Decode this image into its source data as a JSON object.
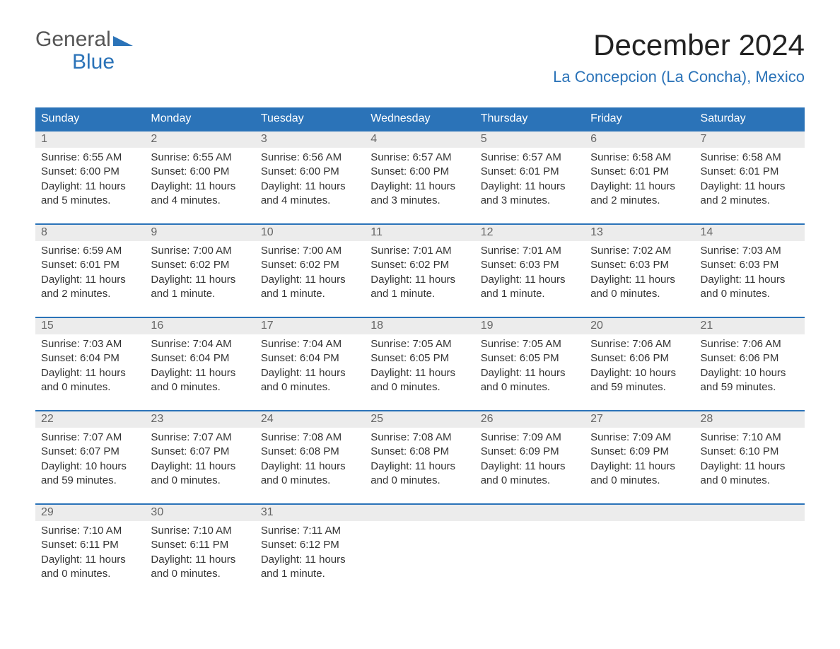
{
  "logo": {
    "word1": "General",
    "word2": "Blue"
  },
  "title": "December 2024",
  "location": "La Concepcion (La Concha), Mexico",
  "colors": {
    "brand_blue": "#2b73b8",
    "header_text": "#ffffff",
    "daynum_bg": "#ececec",
    "daynum_text": "#666666",
    "body_text": "#333333",
    "background": "#ffffff"
  },
  "day_labels": [
    "Sunday",
    "Monday",
    "Tuesday",
    "Wednesday",
    "Thursday",
    "Friday",
    "Saturday"
  ],
  "weeks": [
    [
      {
        "n": "1",
        "sr": "Sunrise: 6:55 AM",
        "ss": "Sunset: 6:00 PM",
        "d1": "Daylight: 11 hours",
        "d2": "and 5 minutes."
      },
      {
        "n": "2",
        "sr": "Sunrise: 6:55 AM",
        "ss": "Sunset: 6:00 PM",
        "d1": "Daylight: 11 hours",
        "d2": "and 4 minutes."
      },
      {
        "n": "3",
        "sr": "Sunrise: 6:56 AM",
        "ss": "Sunset: 6:00 PM",
        "d1": "Daylight: 11 hours",
        "d2": "and 4 minutes."
      },
      {
        "n": "4",
        "sr": "Sunrise: 6:57 AM",
        "ss": "Sunset: 6:00 PM",
        "d1": "Daylight: 11 hours",
        "d2": "and 3 minutes."
      },
      {
        "n": "5",
        "sr": "Sunrise: 6:57 AM",
        "ss": "Sunset: 6:01 PM",
        "d1": "Daylight: 11 hours",
        "d2": "and 3 minutes."
      },
      {
        "n": "6",
        "sr": "Sunrise: 6:58 AM",
        "ss": "Sunset: 6:01 PM",
        "d1": "Daylight: 11 hours",
        "d2": "and 2 minutes."
      },
      {
        "n": "7",
        "sr": "Sunrise: 6:58 AM",
        "ss": "Sunset: 6:01 PM",
        "d1": "Daylight: 11 hours",
        "d2": "and 2 minutes."
      }
    ],
    [
      {
        "n": "8",
        "sr": "Sunrise: 6:59 AM",
        "ss": "Sunset: 6:01 PM",
        "d1": "Daylight: 11 hours",
        "d2": "and 2 minutes."
      },
      {
        "n": "9",
        "sr": "Sunrise: 7:00 AM",
        "ss": "Sunset: 6:02 PM",
        "d1": "Daylight: 11 hours",
        "d2": "and 1 minute."
      },
      {
        "n": "10",
        "sr": "Sunrise: 7:00 AM",
        "ss": "Sunset: 6:02 PM",
        "d1": "Daylight: 11 hours",
        "d2": "and 1 minute."
      },
      {
        "n": "11",
        "sr": "Sunrise: 7:01 AM",
        "ss": "Sunset: 6:02 PM",
        "d1": "Daylight: 11 hours",
        "d2": "and 1 minute."
      },
      {
        "n": "12",
        "sr": "Sunrise: 7:01 AM",
        "ss": "Sunset: 6:03 PM",
        "d1": "Daylight: 11 hours",
        "d2": "and 1 minute."
      },
      {
        "n": "13",
        "sr": "Sunrise: 7:02 AM",
        "ss": "Sunset: 6:03 PM",
        "d1": "Daylight: 11 hours",
        "d2": "and 0 minutes."
      },
      {
        "n": "14",
        "sr": "Sunrise: 7:03 AM",
        "ss": "Sunset: 6:03 PM",
        "d1": "Daylight: 11 hours",
        "d2": "and 0 minutes."
      }
    ],
    [
      {
        "n": "15",
        "sr": "Sunrise: 7:03 AM",
        "ss": "Sunset: 6:04 PM",
        "d1": "Daylight: 11 hours",
        "d2": "and 0 minutes."
      },
      {
        "n": "16",
        "sr": "Sunrise: 7:04 AM",
        "ss": "Sunset: 6:04 PM",
        "d1": "Daylight: 11 hours",
        "d2": "and 0 minutes."
      },
      {
        "n": "17",
        "sr": "Sunrise: 7:04 AM",
        "ss": "Sunset: 6:04 PM",
        "d1": "Daylight: 11 hours",
        "d2": "and 0 minutes."
      },
      {
        "n": "18",
        "sr": "Sunrise: 7:05 AM",
        "ss": "Sunset: 6:05 PM",
        "d1": "Daylight: 11 hours",
        "d2": "and 0 minutes."
      },
      {
        "n": "19",
        "sr": "Sunrise: 7:05 AM",
        "ss": "Sunset: 6:05 PM",
        "d1": "Daylight: 11 hours",
        "d2": "and 0 minutes."
      },
      {
        "n": "20",
        "sr": "Sunrise: 7:06 AM",
        "ss": "Sunset: 6:06 PM",
        "d1": "Daylight: 10 hours",
        "d2": "and 59 minutes."
      },
      {
        "n": "21",
        "sr": "Sunrise: 7:06 AM",
        "ss": "Sunset: 6:06 PM",
        "d1": "Daylight: 10 hours",
        "d2": "and 59 minutes."
      }
    ],
    [
      {
        "n": "22",
        "sr": "Sunrise: 7:07 AM",
        "ss": "Sunset: 6:07 PM",
        "d1": "Daylight: 10 hours",
        "d2": "and 59 minutes."
      },
      {
        "n": "23",
        "sr": "Sunrise: 7:07 AM",
        "ss": "Sunset: 6:07 PM",
        "d1": "Daylight: 11 hours",
        "d2": "and 0 minutes."
      },
      {
        "n": "24",
        "sr": "Sunrise: 7:08 AM",
        "ss": "Sunset: 6:08 PM",
        "d1": "Daylight: 11 hours",
        "d2": "and 0 minutes."
      },
      {
        "n": "25",
        "sr": "Sunrise: 7:08 AM",
        "ss": "Sunset: 6:08 PM",
        "d1": "Daylight: 11 hours",
        "d2": "and 0 minutes."
      },
      {
        "n": "26",
        "sr": "Sunrise: 7:09 AM",
        "ss": "Sunset: 6:09 PM",
        "d1": "Daylight: 11 hours",
        "d2": "and 0 minutes."
      },
      {
        "n": "27",
        "sr": "Sunrise: 7:09 AM",
        "ss": "Sunset: 6:09 PM",
        "d1": "Daylight: 11 hours",
        "d2": "and 0 minutes."
      },
      {
        "n": "28",
        "sr": "Sunrise: 7:10 AM",
        "ss": "Sunset: 6:10 PM",
        "d1": "Daylight: 11 hours",
        "d2": "and 0 minutes."
      }
    ],
    [
      {
        "n": "29",
        "sr": "Sunrise: 7:10 AM",
        "ss": "Sunset: 6:11 PM",
        "d1": "Daylight: 11 hours",
        "d2": "and 0 minutes."
      },
      {
        "n": "30",
        "sr": "Sunrise: 7:10 AM",
        "ss": "Sunset: 6:11 PM",
        "d1": "Daylight: 11 hours",
        "d2": "and 0 minutes."
      },
      {
        "n": "31",
        "sr": "Sunrise: 7:11 AM",
        "ss": "Sunset: 6:12 PM",
        "d1": "Daylight: 11 hours",
        "d2": "and 1 minute."
      },
      {
        "n": "",
        "sr": "",
        "ss": "",
        "d1": "",
        "d2": ""
      },
      {
        "n": "",
        "sr": "",
        "ss": "",
        "d1": "",
        "d2": ""
      },
      {
        "n": "",
        "sr": "",
        "ss": "",
        "d1": "",
        "d2": ""
      },
      {
        "n": "",
        "sr": "",
        "ss": "",
        "d1": "",
        "d2": ""
      }
    ]
  ]
}
